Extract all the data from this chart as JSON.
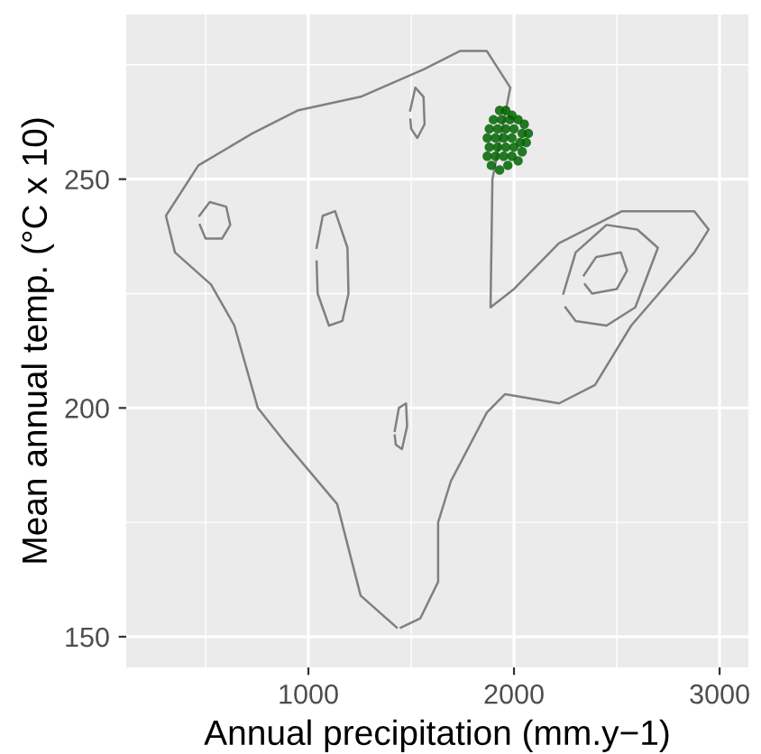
{
  "chart_data": {
    "type": "line",
    "xlabel": "Annual precipitation (mm.y−1)",
    "ylabel": "Mean annual temp. (°C x 10)",
    "xlim": [
      114,
      3140
    ],
    "ylim": [
      143.3,
      286
    ],
    "xticks": [
      1000,
      2000,
      3000
    ],
    "yticks": [
      150,
      200,
      250
    ],
    "grid": true,
    "marker": "none",
    "line_style": "solid",
    "series": [
      {
        "color": "#808080",
        "x": [
          1430,
          1254,
          1140,
          877,
          754,
          640,
          526,
          351,
          307,
          465,
          728,
          947,
          1254,
          1561,
          1737,
          1868,
          1982,
          1895,
          1886,
          2000,
          2219,
          2526,
          2877,
          2947,
          2877,
          2570,
          2394,
          2219,
          1956,
          1868,
          1693,
          1631,
          1631,
          1544,
          1450
        ],
        "values": [
          152,
          159,
          179,
          193,
          200,
          218,
          227,
          234,
          242,
          253,
          260,
          265,
          268,
          274,
          278,
          278,
          270,
          250,
          222,
          226,
          236,
          243,
          243,
          239,
          234,
          218,
          205,
          201,
          203,
          199,
          184,
          175,
          162,
          154,
          152
        ]
      },
      {
        "color": "#808080",
        "x": [
          1040,
          1070,
          1130,
          1190,
          1195,
          1165,
          1100,
          1045,
          1040
        ],
        "values": [
          235,
          242,
          243,
          235,
          225,
          219,
          218,
          225,
          232
        ]
      },
      {
        "color": "#808080",
        "x": [
          470,
          520,
          600,
          620,
          580,
          500,
          472
        ],
        "values": [
          242,
          245,
          244,
          240,
          237,
          237,
          240
        ]
      },
      {
        "color": "#808080",
        "x": [
          1495,
          1520,
          1560,
          1565,
          1530,
          1500,
          1496
        ],
        "values": [
          265,
          270,
          268,
          262,
          259,
          261,
          263
        ]
      },
      {
        "color": "#808080",
        "x": [
          2340,
          2400,
          2520,
          2550,
          2500,
          2380,
          2345
        ],
        "values": [
          229,
          233,
          234,
          230,
          226,
          225,
          227
        ]
      },
      {
        "color": "#808080",
        "x": [
          2240,
          2300,
          2450,
          2600,
          2700,
          2590,
          2450,
          2300,
          2250
        ],
        "values": [
          225,
          234,
          240,
          239,
          235,
          222,
          218,
          219,
          222
        ]
      },
      {
        "color": "#808080",
        "x": [
          1420,
          1440,
          1475,
          1480,
          1455,
          1425,
          1420
        ],
        "values": [
          195,
          200,
          201,
          196,
          191,
          192,
          194
        ]
      },
      {
        "type": "scatter",
        "marker": "circle",
        "color": "#006400",
        "x": [
          1930,
          1960,
          1990,
          1900,
          1940,
          1980,
          2020,
          2050,
          1880,
          1920,
          1960,
          2000,
          2040,
          2070,
          1870,
          1910,
          1950,
          1990,
          2030,
          2060,
          1880,
          1920,
          1960,
          2000,
          2040,
          1870,
          1910,
          1950,
          1990,
          2020,
          1890,
          1930,
          1970
        ],
        "values": [
          265,
          265,
          264,
          263,
          263,
          263,
          263,
          262,
          261,
          261,
          261,
          261,
          260,
          260,
          259,
          259,
          259,
          259,
          258,
          258,
          257,
          257,
          257,
          257,
          256,
          255,
          255,
          255,
          255,
          254,
          253,
          252,
          253
        ]
      }
    ]
  }
}
